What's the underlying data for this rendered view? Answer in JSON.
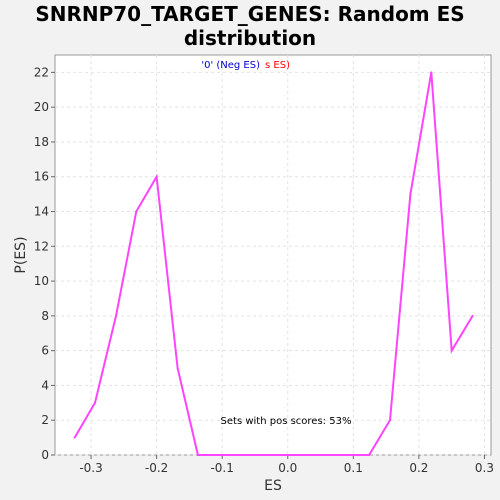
{
  "title_line1": "SNRNP70_TARGET_GENES: Random ES",
  "title_line2": "distribution",
  "chart_data": {
    "type": "line",
    "title": "SNRNP70_TARGET_GENES: Random ES distribution",
    "xlabel": "ES",
    "ylabel": "P(ES)",
    "xlim": [
      -0.355,
      0.31
    ],
    "ylim": [
      0,
      23
    ],
    "xticks": [
      "-0.3",
      "-0.2",
      "-0.1",
      "0.0",
      "0.1",
      "0.2",
      "0.3"
    ],
    "yticks": [
      "0",
      "2",
      "4",
      "6",
      "8",
      "10",
      "12",
      "14",
      "16",
      "18",
      "20",
      "22"
    ],
    "grid": true,
    "series": [
      {
        "color": "#ff44ff",
        "x": [
          -0.325,
          -0.294,
          -0.262,
          -0.231,
          -0.2,
          -0.168,
          -0.137,
          -0.105,
          -0.074,
          -0.042,
          -0.011,
          0.02,
          0.052,
          0.083,
          0.124,
          0.156,
          0.187,
          0.219,
          0.25,
          0.282
        ],
        "y": [
          1,
          3,
          8,
          14,
          16,
          5,
          0,
          0,
          0,
          0,
          0,
          0,
          0,
          0,
          0,
          2,
          15,
          22,
          6,
          8
        ]
      }
    ],
    "legend_neg": "'0' (Neg ES)",
    "legend_pos": "s ES)",
    "annotation": "Sets with pos scores: 53%",
    "neg_color": "#0000cc",
    "pos_color": "#ff0000"
  }
}
